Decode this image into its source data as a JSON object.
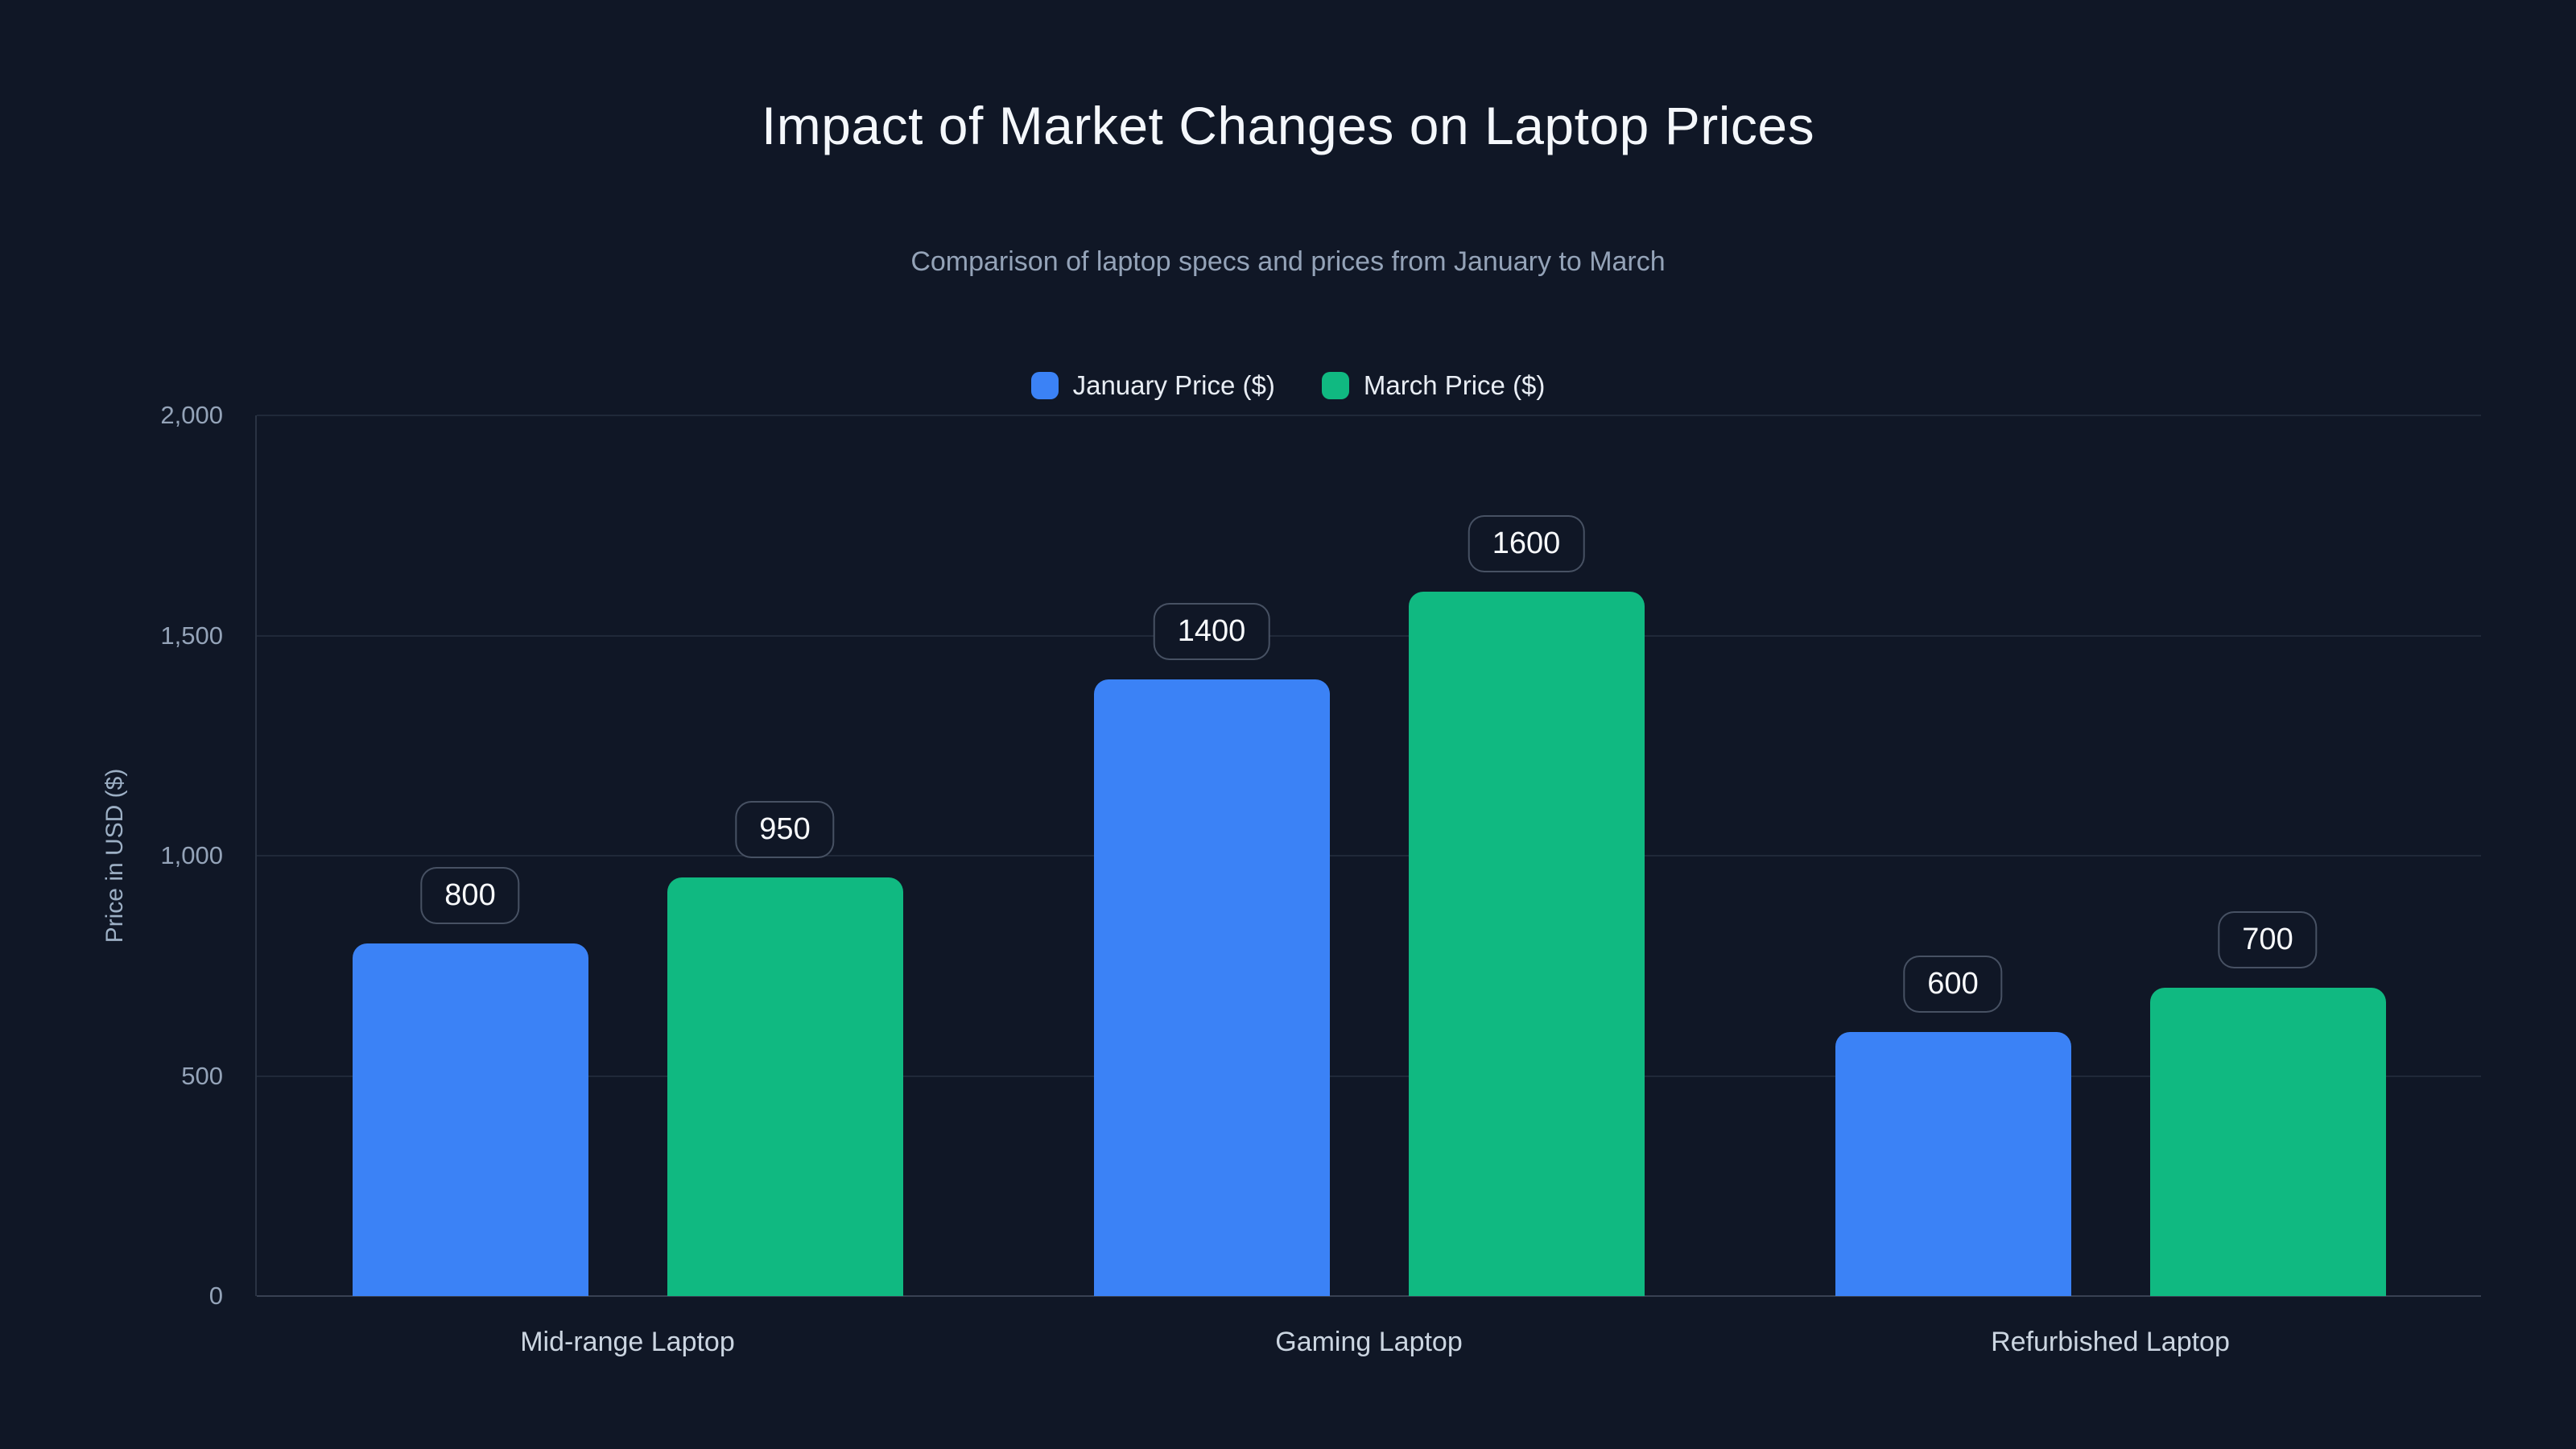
{
  "page": {
    "background": "#101726"
  },
  "header": {
    "title": "Impact of Market Changes on Laptop Prices",
    "subtitle": "Comparison of laptop specs and prices from January to March"
  },
  "chart_data": {
    "type": "bar",
    "title": "Impact of Market Changes on Laptop Prices",
    "subtitle": "Comparison of laptop specs and prices from January to March",
    "categories": [
      "Mid-range Laptop",
      "Gaming Laptop",
      "Refurbished Laptop"
    ],
    "series": [
      {
        "name": "January Price ($)",
        "color": "#3b82f6",
        "values": [
          800,
          1400,
          600
        ]
      },
      {
        "name": "March Price ($)",
        "color": "#10b981",
        "values": [
          950,
          1600,
          700
        ]
      }
    ],
    "xlabel": "",
    "ylabel": "Price in USD ($)",
    "ylim": [
      0,
      2000
    ],
    "y_ticks": [
      0,
      500,
      1000,
      1500,
      2000
    ],
    "y_tick_labels": [
      "0",
      "500",
      "1,000",
      "1,500",
      "2,000"
    ],
    "grid": true,
    "legend_position": "top",
    "data_labels": true
  }
}
